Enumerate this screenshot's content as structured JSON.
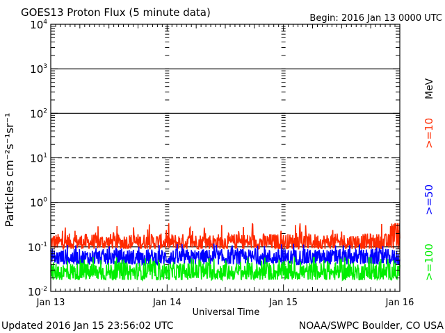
{
  "chart_data": {
    "type": "line",
    "title": "GOES13 Proton Flux (5 minute data)",
    "begin_label": "Begin: 2016 Jan 13 0000 UTC",
    "xlabel": "Universal Time",
    "ylabel": "Particles cm⁻²s⁻¹sr⁻¹",
    "unit_label": "MeV",
    "x_tick_labels": [
      "Jan 13",
      "Jan 14",
      "Jan 15",
      "Jan 16"
    ],
    "y_tick_labels": [
      {
        "base": "10",
        "exp": "-2"
      },
      {
        "base": "10",
        "exp": "-1"
      },
      {
        "base": "10",
        "exp": "0"
      },
      {
        "base": "10",
        "exp": "1"
      },
      {
        "base": "10",
        "exp": "2"
      },
      {
        "base": "10",
        "exp": "3"
      },
      {
        "base": "10",
        "exp": "4"
      }
    ],
    "y_scale": "log",
    "ylim": [
      0.01,
      10000
    ],
    "xlim_days": [
      0,
      3
    ],
    "threshold_line": {
      "value": 10,
      "style": "dashed"
    },
    "series": [
      {
        "name": ">=10",
        "color": "#ff2a00",
        "typical_low": 0.09,
        "typical_high": 0.2,
        "peak": 0.35
      },
      {
        "name": ">=50",
        "color": "#0000ff",
        "typical_low": 0.04,
        "typical_high": 0.09,
        "peak": 0.12
      },
      {
        "name": ">=100",
        "color": "#00ee00",
        "typical_low": 0.018,
        "typical_high": 0.045,
        "peak": 0.06
      }
    ]
  },
  "footer": {
    "updated": "Updated 2016 Jan 15 23:56:02 UTC",
    "source": "NOAA/SWPC Boulder, CO USA"
  }
}
